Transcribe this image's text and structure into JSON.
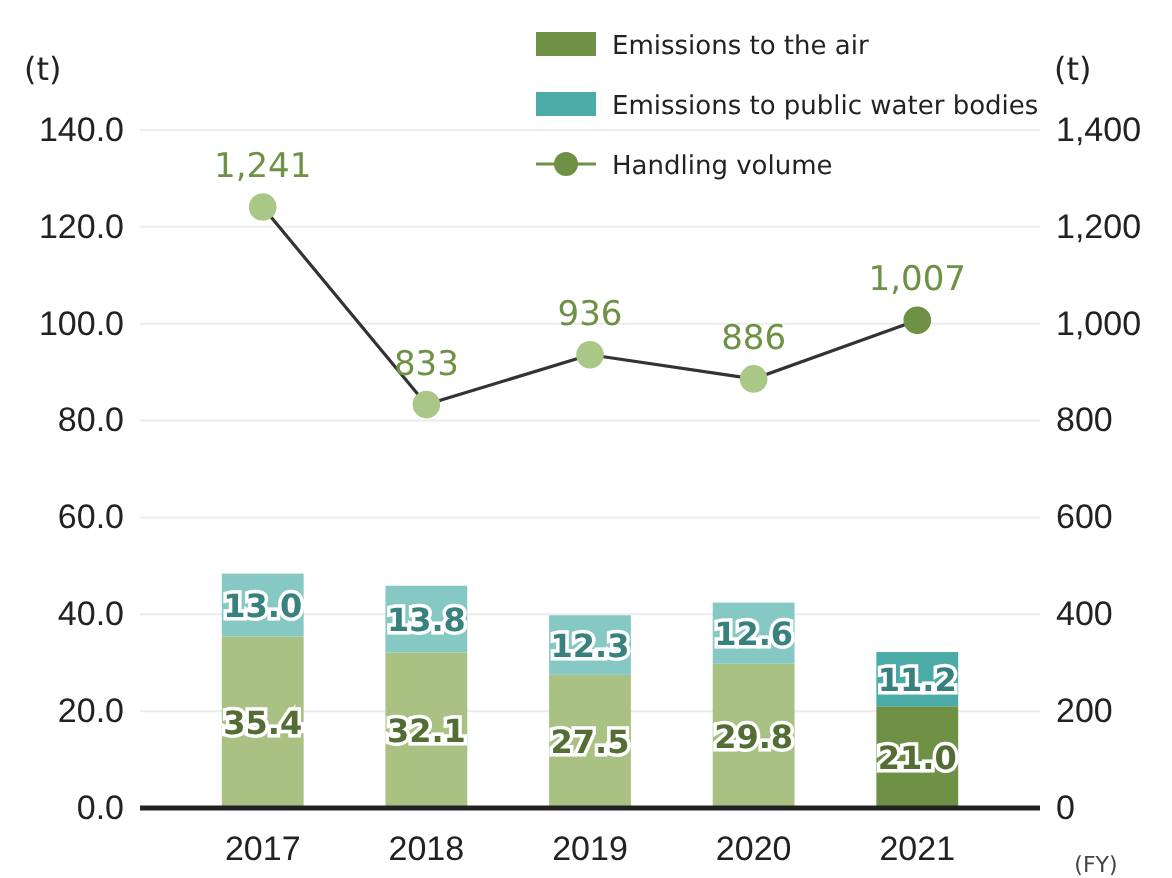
{
  "chart_data": {
    "type": "bar",
    "stacked": true,
    "ylabel": "(t)",
    "y2label": "(t)",
    "categories": [
      "2017",
      "2018",
      "2019",
      "2020",
      "2021"
    ],
    "series": [
      {
        "name": "Emissions to the air",
        "color": "#6e9145",
        "colors": [
          "#a9c283",
          "#a9c283",
          "#a9c283",
          "#a9c283",
          "#6e9145"
        ],
        "values": [
          35.4,
          32.1,
          27.5,
          29.8,
          21.0
        ],
        "value_labels": [
          "35.4",
          "32.1",
          "27.5",
          "29.8",
          "21.0"
        ]
      },
      {
        "name": "Emissions to public water bodies",
        "color": "#4aaba7",
        "colors": [
          "#86c8c3",
          "#86c8c3",
          "#86c8c3",
          "#86c8c3",
          "#4aaba7"
        ],
        "values": [
          13.0,
          13.8,
          12.3,
          12.6,
          11.2
        ],
        "value_labels": [
          "13.0",
          "13.8",
          "12.3",
          "12.6",
          "11.2"
        ]
      },
      {
        "name": "Handling volume",
        "type": "line",
        "axis": "y2",
        "color": "#333333",
        "marker": "circle",
        "colors": [
          "#a9c786",
          "#a9c786",
          "#a9c786",
          "#a9c786",
          "#6e9145"
        ],
        "values": [
          1241,
          833,
          936,
          886,
          1007
        ],
        "value_labels": [
          "1,241",
          "833",
          "936",
          "886",
          "1,007"
        ]
      }
    ],
    "ylim": [
      0,
      140
    ],
    "yticks": [
      {
        "value": 0,
        "label": "0.0"
      },
      {
        "value": 20,
        "label": "20.0"
      },
      {
        "value": 40,
        "label": "40.0"
      },
      {
        "value": 60,
        "label": "60.0"
      },
      {
        "value": 80,
        "label": "80.0"
      },
      {
        "value": 100,
        "label": "100.0"
      },
      {
        "value": 120,
        "label": "120.0"
      },
      {
        "value": 140,
        "label": "140.0"
      }
    ],
    "y2lim": [
      0,
      1400
    ],
    "y2ticks": [
      0,
      {
        "value": 200,
        "label": "200"
      },
      {
        "value": 400,
        "label": "400"
      },
      {
        "value": 600,
        "label": "600"
      },
      {
        "value": 800,
        "label": "800"
      },
      {
        "value": 1000,
        "label": "1,000"
      },
      {
        "value": 1200,
        "label": "1,200"
      },
      {
        "value": 1400,
        "label": "1,400"
      }
    ],
    "grid": "y",
    "legend": "top right",
    "annotations": [
      "(FY)"
    ]
  }
}
